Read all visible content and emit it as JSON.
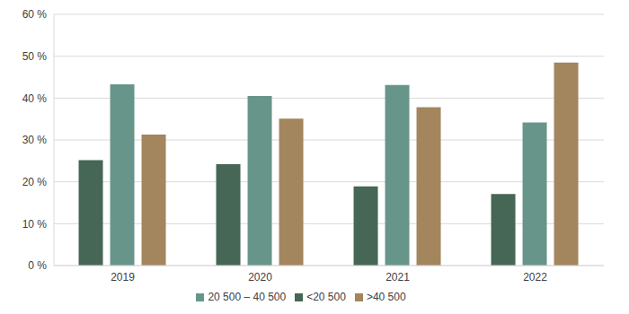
{
  "chart_data": {
    "type": "bar",
    "categories": [
      "2019",
      "2020",
      "2021",
      "2022"
    ],
    "series": [
      {
        "name": "<20 500",
        "color": "#466656",
        "values": [
          25.2,
          24.2,
          18.9,
          17.1
        ]
      },
      {
        "name": "20 500 – 40 500",
        "color": "#67958a",
        "values": [
          43.3,
          40.5,
          43.1,
          34.2
        ]
      },
      {
        "name": ">40 500",
        "color": "#a3855e",
        "values": [
          31.3,
          35.1,
          37.8,
          48.5
        ]
      }
    ],
    "ylim": [
      0,
      60
    ],
    "yticks": [
      {
        "value": 0,
        "label": "0 %"
      },
      {
        "value": 10,
        "label": "10 %"
      },
      {
        "value": 20,
        "label": "20 %"
      },
      {
        "value": 30,
        "label": "30 %"
      },
      {
        "value": 40,
        "label": "40 %"
      },
      {
        "value": 50,
        "label": "50 %"
      },
      {
        "value": 60,
        "label": "60 %"
      }
    ],
    "grid": true,
    "legend": "bottom"
  }
}
